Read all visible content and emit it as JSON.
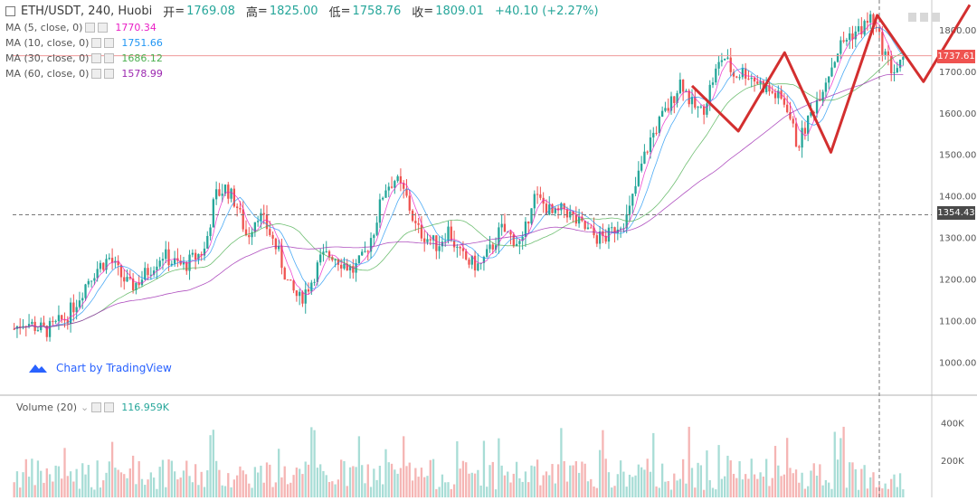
{
  "legend": {
    "symbol": "ETH/USDT, 240, Huobi",
    "ohlc": [
      {
        "k": "开",
        "v": "1769.08"
      },
      {
        "k": "高",
        "v": "1825.00"
      },
      {
        "k": "低",
        "v": "1758.76"
      },
      {
        "k": "收",
        "v": "1809.01"
      }
    ],
    "change": "+40.10 (+2.27%)",
    "ma": [
      {
        "label": "MA (5, close, 0)",
        "value": "1770.34",
        "color": "#e91ec5"
      },
      {
        "label": "MA (10, close, 0)",
        "value": "1751.66",
        "color": "#2196f3"
      },
      {
        "label": "MA (30, close, 0)",
        "value": "1686.12",
        "color": "#4caf50"
      },
      {
        "label": "MA (60, close, 0)",
        "value": "1578.99",
        "color": "#9c27b0"
      }
    ]
  },
  "volume_legend": {
    "label": "Volume (20)",
    "value": "116.959K"
  },
  "attribution": "Chart by TradingView",
  "price_tags": {
    "current": "1737.61",
    "crosshair": "1354.43"
  },
  "colors": {
    "up": "#26a69a",
    "down": "#ef5350",
    "overlay": "#d32f2f",
    "ma5": "#e91ec5",
    "ma10": "#2196f3",
    "ma30": "#4caf50",
    "ma60": "#9c27b0"
  },
  "chart_data": {
    "type": "candlestick",
    "price_axis_ticks": [
      "1800.00",
      "1700.00",
      "1600.00",
      "1500.00",
      "1400.00",
      "1300.00",
      "1200.00",
      "1100.00",
      "1000.00"
    ],
    "price_range": [
      920,
      1850
    ],
    "volume_axis_ticks": [
      "400K",
      "200K"
    ],
    "volume_range": [
      0,
      500
    ],
    "close_path": [
      1080,
      1100,
      1085,
      1075,
      1090,
      1110,
      1150,
      1200,
      1230,
      1250,
      1210,
      1180,
      1200,
      1230,
      1260,
      1240,
      1230,
      1250,
      1270,
      1400,
      1420,
      1380,
      1300,
      1360,
      1320,
      1260,
      1180,
      1150,
      1190,
      1250,
      1260,
      1240,
      1220,
      1250,
      1320,
      1420,
      1440,
      1400,
      1320,
      1300,
      1280,
      1320,
      1260,
      1240,
      1230,
      1270,
      1320,
      1300,
      1280,
      1400,
      1380,
      1350,
      1370,
      1340,
      1320,
      1300,
      1300,
      1330,
      1350,
      1450,
      1530,
      1580,
      1620,
      1680,
      1620,
      1600,
      1680,
      1740,
      1690,
      1700,
      1680,
      1660,
      1640,
      1620,
      1520,
      1580,
      1640,
      1700,
      1760,
      1790,
      1800,
      1830,
      1760,
      1700,
      1720
    ],
    "zigzag_overlay": [
      [
        1665,
        1556,
        1745,
        1505,
        1835,
        1675,
        1860
      ]
    ],
    "horizontal_lines": [
      1737.61,
      1354.43
    ]
  }
}
